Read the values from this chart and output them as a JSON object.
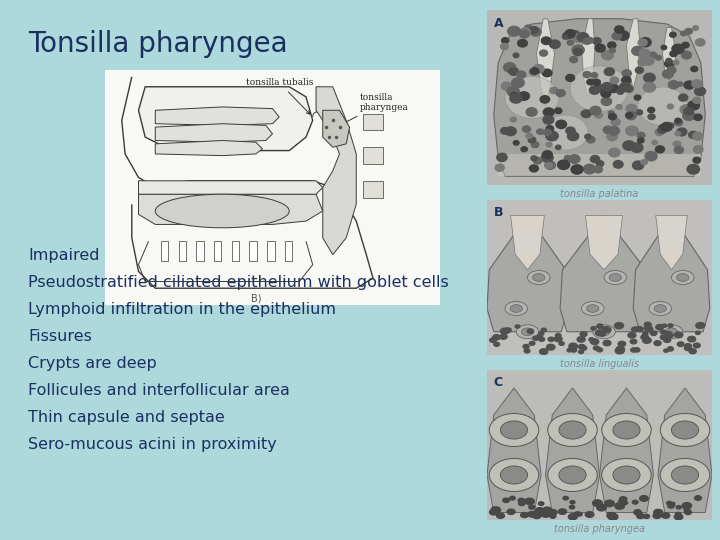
{
  "title": "Tonsilla pharyngea",
  "title_color": "#1a3060",
  "title_fontsize": 20,
  "background_color": "#add8dc",
  "bullet_points": [
    "Impaired",
    "Pseudostratified ciliated epithelium with goblet cells",
    "Lymphoid infiltration in the epithelium",
    "Fissures",
    "Crypts are deep",
    "Follicules and interfollicular area",
    "Thin capsule and septae",
    "Sero-mucous acini in proximity"
  ],
  "bullet_color": "#1a3060",
  "bullet_fontsize": 11.5,
  "left_image_bg": "#f8f8f5",
  "label_color": "#1a3060",
  "caption_A": "tonsilla palatina",
  "caption_B": "tonsilla lingualis",
  "caption_C": "tonsilla pharyngea",
  "caption_color": "#888888",
  "caption_fontsize": 7
}
